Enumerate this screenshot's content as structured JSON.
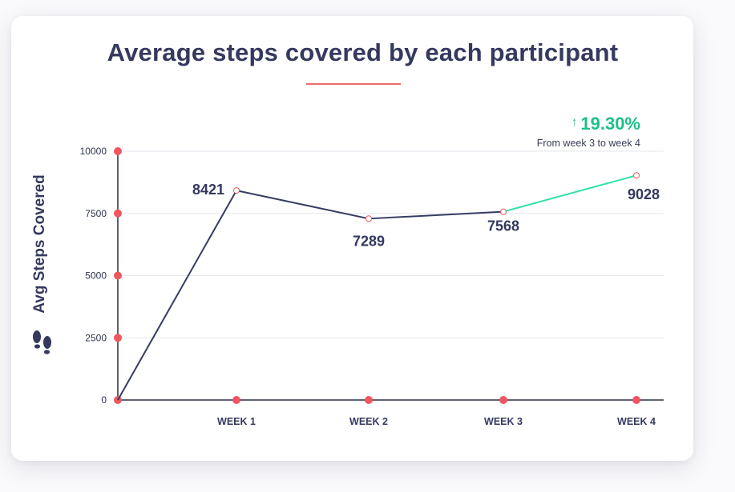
{
  "chart_data": {
    "type": "line",
    "title": "Average steps covered by each participant",
    "ylabel": "Avg Steps Covered",
    "xlabel": "",
    "categories": [
      "",
      "WEEK 1",
      "WEEK 2",
      "WEEK 3",
      "WEEK 4"
    ],
    "series": [
      {
        "values": [
          0,
          8421,
          7289,
          7568,
          9028
        ]
      }
    ],
    "data_labels": [
      "",
      "8421",
      "7289",
      "7568",
      "9028"
    ],
    "y_ticks": [
      "0",
      "2500",
      "5000",
      "7500",
      "10000"
    ],
    "ylim": [
      0,
      10000
    ],
    "grid": true,
    "highlight_segment": {
      "from": "WEEK 3",
      "to": "WEEK 4",
      "change": "19.30%",
      "note": "From week 3 to week 4"
    },
    "colors": {
      "line": "#363c63",
      "highlight": "#2fe3a6",
      "accent": "#f0565e",
      "positive": "#1dbf8a",
      "text": "#35395f"
    },
    "icons": [
      "arrow-up-icon",
      "footsteps-icon"
    ]
  }
}
